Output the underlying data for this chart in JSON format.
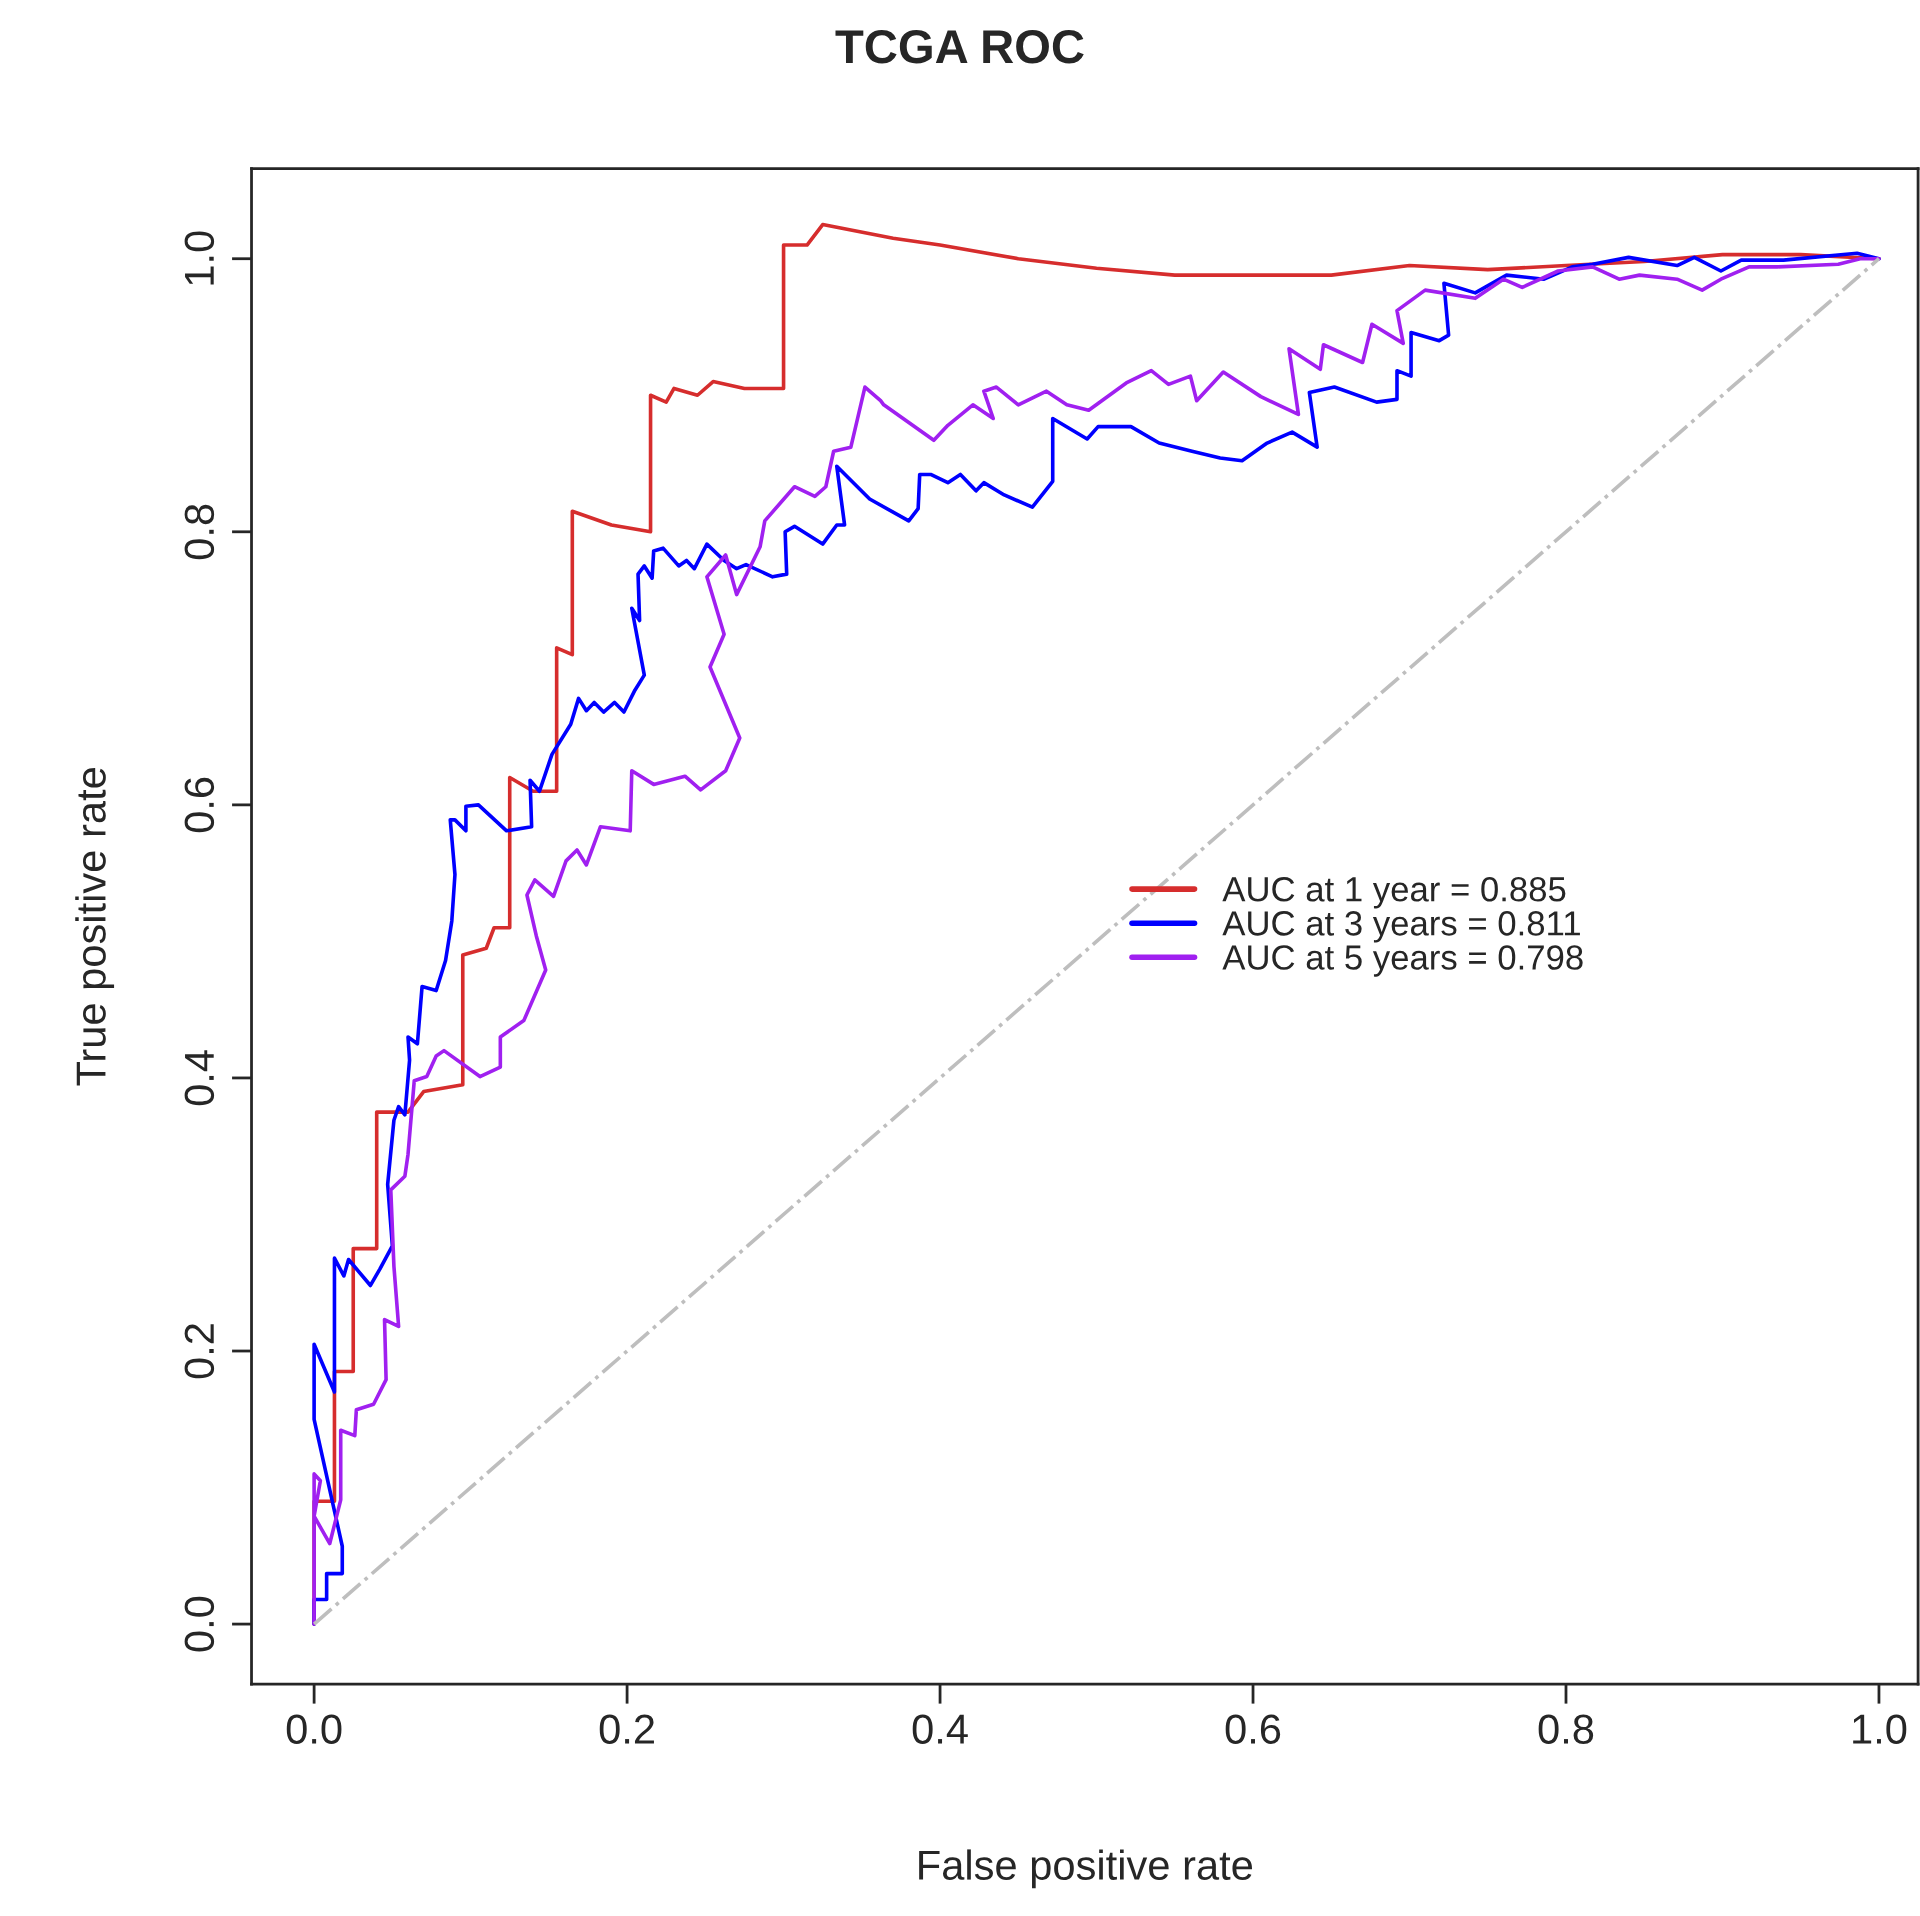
{
  "chart_data": {
    "type": "line",
    "title": "TCGA ROC",
    "xlabel": "False positive rate",
    "ylabel": "True positive rate",
    "xlim": [
      -0.04,
      1.025
    ],
    "ylim": [
      -0.044,
      1.066
    ],
    "xticks": [
      {
        "value": 0,
        "label": "0.0"
      },
      {
        "value": 0.2,
        "label": "0.2"
      },
      {
        "value": 0.4,
        "label": "0.4"
      },
      {
        "value": 0.6,
        "label": "0.6"
      },
      {
        "value": 0.8,
        "label": "0.8"
      },
      {
        "value": 1,
        "label": "1.0"
      }
    ],
    "yticks": [
      {
        "value": 0,
        "label": "0.0"
      },
      {
        "value": 0.2,
        "label": "0.2"
      },
      {
        "value": 0.4,
        "label": "0.4"
      },
      {
        "value": 0.6,
        "label": "0.6"
      },
      {
        "value": 0.8,
        "label": "0.8"
      },
      {
        "value": 1,
        "label": "1.0"
      }
    ],
    "grid": false,
    "legend": "right",
    "marker": "none",
    "series": [
      {
        "name": "AUC at 1 year = 0.885",
        "color": "#d62d2d",
        "x": [
          0,
          0,
          0.013,
          0.013,
          0.025,
          0.025,
          0.04,
          0.04,
          0.06,
          0.07,
          0.095,
          0.095,
          0.11,
          0.115,
          0.125,
          0.125,
          0.14,
          0.155,
          0.155,
          0.165,
          0.165,
          0.19,
          0.215,
          0.215,
          0.225,
          0.23,
          0.245,
          0.255,
          0.275,
          0.3,
          0.3,
          0.315,
          0.325,
          0.37,
          0.4,
          0.45,
          0.5,
          0.55,
          0.6,
          0.65,
          0.7,
          0.75,
          0.8,
          0.85,
          0.9,
          0.95,
          1.0
        ],
        "values": [
          0,
          0.09,
          0.09,
          0.185,
          0.185,
          0.275,
          0.275,
          0.375,
          0.375,
          0.39,
          0.395,
          0.49,
          0.495,
          0.51,
          0.51,
          0.62,
          0.61,
          0.61,
          0.715,
          0.71,
          0.815,
          0.805,
          0.8,
          0.9,
          0.895,
          0.905,
          0.9,
          0.91,
          0.905,
          0.905,
          1.01,
          1.01,
          1.025,
          1.015,
          1.01,
          1.0,
          0.993,
          0.988,
          0.988,
          0.988,
          0.995,
          0.992,
          0.995,
          0.998,
          1.003,
          1.003,
          1.0
        ]
      },
      {
        "name": "AUC at 3 years = 0.811",
        "color": "#0000ff",
        "x": [
          0,
          0,
          0.008,
          0.008,
          0.018,
          0.018,
          0,
          0,
          0.013,
          0.013,
          0.019,
          0.022,
          0.036,
          0.042,
          0.05,
          0.047,
          0.051,
          0.054,
          0.058,
          0.061,
          0.06,
          0.066,
          0.069,
          0.078,
          0.084,
          0.088,
          0.09,
          0.087,
          0.09,
          0.097,
          0.097,
          0.105,
          0.123,
          0.139,
          0.138,
          0.144,
          0.152,
          0.164,
          0.169,
          0.174,
          0.179,
          0.185,
          0.192,
          0.198,
          0.205,
          0.211,
          0.203,
          0.208,
          0.207,
          0.211,
          0.216,
          0.217,
          0.223,
          0.233,
          0.238,
          0.243,
          0.251,
          0.262,
          0.27,
          0.276,
          0.293,
          0.302,
          0.301,
          0.307,
          0.325,
          0.334,
          0.339,
          0.334,
          0.355,
          0.38,
          0.386,
          0.387,
          0.394,
          0.405,
          0.413,
          0.423,
          0.428,
          0.441,
          0.459,
          0.472,
          0.472,
          0.494,
          0.501,
          0.522,
          0.54,
          0.561,
          0.579,
          0.593,
          0.609,
          0.625,
          0.641,
          0.636,
          0.652,
          0.679,
          0.692,
          0.692,
          0.701,
          0.701,
          0.719,
          0.725,
          0.722,
          0.742,
          0.762,
          0.786,
          0.804,
          0.817,
          0.84,
          0.871,
          0.882,
          0.899,
          0.912,
          0.939,
          0.986,
          1
        ],
        "values": [
          0,
          0.018,
          0.018,
          0.037,
          0.037,
          0.057,
          0.15,
          0.205,
          0.17,
          0.268,
          0.255,
          0.267,
          0.248,
          0.26,
          0.277,
          0.322,
          0.369,
          0.379,
          0.373,
          0.413,
          0.43,
          0.425,
          0.467,
          0.464,
          0.486,
          0.515,
          0.549,
          0.589,
          0.589,
          0.581,
          0.599,
          0.6,
          0.581,
          0.584,
          0.618,
          0.61,
          0.637,
          0.659,
          0.678,
          0.669,
          0.675,
          0.668,
          0.675,
          0.668,
          0.684,
          0.695,
          0.744,
          0.735,
          0.769,
          0.775,
          0.766,
          0.786,
          0.788,
          0.775,
          0.779,
          0.773,
          0.791,
          0.779,
          0.773,
          0.776,
          0.767,
          0.769,
          0.8,
          0.804,
          0.791,
          0.805,
          0.805,
          0.848,
          0.824,
          0.808,
          0.817,
          0.842,
          0.842,
          0.836,
          0.842,
          0.83,
          0.836,
          0.827,
          0.818,
          0.837,
          0.883,
          0.868,
          0.877,
          0.877,
          0.865,
          0.859,
          0.854,
          0.852,
          0.865,
          0.873,
          0.862,
          0.902,
          0.906,
          0.895,
          0.897,
          0.918,
          0.914,
          0.946,
          0.94,
          0.944,
          0.982,
          0.975,
          0.988,
          0.985,
          0.994,
          0.996,
          1.001,
          0.995,
          1.001,
          0.991,
          0.999,
          0.999,
          1.004,
          1
        ]
      },
      {
        "name": "AUC at 5 years = 0.798",
        "color": "#a020f0",
        "x": [
          0,
          0,
          0.004,
          0,
          0.01,
          0.017,
          0.017,
          0.026,
          0.027,
          0.038,
          0.046,
          0.045,
          0.054,
          0.051,
          0.049,
          0.058,
          0.06,
          0.064,
          0.072,
          0.078,
          0.083,
          0.106,
          0.119,
          0.119,
          0.134,
          0.148,
          0.142,
          0.136,
          0.141,
          0.153,
          0.161,
          0.168,
          0.174,
          0.183,
          0.202,
          0.203,
          0.217,
          0.237,
          0.247,
          0.263,
          0.272,
          0.253,
          0.262,
          0.251,
          0.263,
          0.27,
          0.285,
          0.288,
          0.307,
          0.32,
          0.327,
          0.332,
          0.343,
          0.352,
          0.362,
          0.364,
          0.396,
          0.405,
          0.421,
          0.434,
          0.428,
          0.436,
          0.45,
          0.468,
          0.481,
          0.495,
          0.519,
          0.535,
          0.546,
          0.56,
          0.564,
          0.581,
          0.605,
          0.629,
          0.623,
          0.643,
          0.645,
          0.67,
          0.676,
          0.696,
          0.692,
          0.71,
          0.742,
          0.76,
          0.772,
          0.795,
          0.817,
          0.834,
          0.847,
          0.871,
          0.887,
          0.899,
          0.917,
          0.935,
          0.974,
          0.988,
          1
        ],
        "values": [
          0,
          0.11,
          0.105,
          0.079,
          0.059,
          0.091,
          0.142,
          0.138,
          0.157,
          0.161,
          0.179,
          0.223,
          0.218,
          0.262,
          0.318,
          0.328,
          0.344,
          0.398,
          0.401,
          0.416,
          0.42,
          0.401,
          0.408,
          0.43,
          0.442,
          0.479,
          0.504,
          0.534,
          0.545,
          0.533,
          0.559,
          0.567,
          0.556,
          0.584,
          0.581,
          0.625,
          0.615,
          0.621,
          0.611,
          0.625,
          0.649,
          0.701,
          0.725,
          0.767,
          0.783,
          0.754,
          0.789,
          0.808,
          0.833,
          0.826,
          0.833,
          0.859,
          0.862,
          0.906,
          0.896,
          0.893,
          0.867,
          0.878,
          0.893,
          0.883,
          0.903,
          0.906,
          0.893,
          0.903,
          0.893,
          0.889,
          0.909,
          0.918,
          0.908,
          0.914,
          0.896,
          0.917,
          0.899,
          0.886,
          0.934,
          0.919,
          0.937,
          0.924,
          0.952,
          0.938,
          0.962,
          0.977,
          0.971,
          0.985,
          0.979,
          0.991,
          0.994,
          0.985,
          0.988,
          0.985,
          0.977,
          0.985,
          0.994,
          0.994,
          0.996,
          1.0,
          1
        ]
      },
      {
        "color": "#bebebe",
        "line_style": "dashdot",
        "x": [
          0,
          1
        ],
        "values": [
          0,
          1
        ]
      }
    ]
  }
}
